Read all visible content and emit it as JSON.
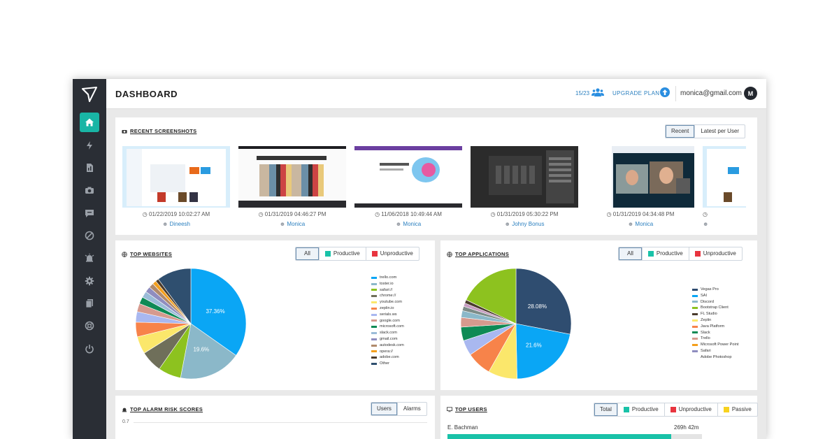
{
  "header": {
    "title": "DASHBOARD",
    "seats": "15/23",
    "upgrade_label": "UPGRADE PLAN",
    "email": "monica@gmail.com",
    "avatar_initial": "M"
  },
  "sidebar": {
    "items": [
      {
        "icon": "home-icon",
        "active": true
      },
      {
        "icon": "lightning-icon"
      },
      {
        "icon": "report-icon"
      },
      {
        "icon": "camera-icon"
      },
      {
        "icon": "chat-icon"
      },
      {
        "icon": "block-icon"
      },
      {
        "icon": "alarm-icon"
      },
      {
        "icon": "gear-icon"
      },
      {
        "icon": "documents-icon"
      },
      {
        "icon": "support-icon"
      },
      {
        "icon": "power-icon"
      }
    ]
  },
  "screenshots": {
    "title": "RECENT SCREENSHOTS",
    "tabs": [
      "Recent",
      "Latest per User"
    ],
    "selected_tab": "Recent",
    "items": [
      {
        "datetime": "01/22/2019 10:02:27 AM",
        "user": "Dineesh"
      },
      {
        "datetime": "01/31/2019 04:46:27 PM",
        "user": "Monica"
      },
      {
        "datetime": "11/06/2018 10:49:44 AM",
        "user": "Monica"
      },
      {
        "datetime": "01/31/2019 05:30:22 PM",
        "user": "Johny Bonus"
      },
      {
        "datetime": "01/31/2019 04:34:48 PM",
        "user": "Monica"
      }
    ]
  },
  "websites": {
    "title": "TOP WEBSITES",
    "filters": [
      "All",
      "Productive",
      "Unproductive"
    ],
    "selected_filter": "All",
    "filter_colors": [
      "",
      "#19c2a8",
      "#e8343f"
    ],
    "chart_data": {
      "type": "pie",
      "slices": [
        {
          "label": "trello.com",
          "value": 37.36,
          "color": "#0aa6f5",
          "shown": "37.36%"
        },
        {
          "label": "toster.io",
          "value": 19.6,
          "color": "#8bb8c9",
          "shown": "19.6%"
        },
        {
          "label": "safari://",
          "value": 7.2,
          "color": "#8dc21f",
          "shown": ""
        },
        {
          "label": "chrome://",
          "value": 6.8,
          "color": "#6f6f5a",
          "shown": ""
        },
        {
          "label": "youtube.com",
          "value": 5.5,
          "color": "#fbe76b",
          "shown": ""
        },
        {
          "label": "zeplin.io",
          "value": 4.6,
          "color": "#f7834a",
          "shown": ""
        },
        {
          "label": "serials.ws",
          "value": 3.3,
          "color": "#a9b8f0",
          "shown": ""
        },
        {
          "label": "google.com",
          "value": 2.6,
          "color": "#d69a8e",
          "shown": ""
        },
        {
          "label": "microsoft.com",
          "value": 2.2,
          "color": "#0e8a55",
          "shown": ""
        },
        {
          "label": "slack.com",
          "value": 2.0,
          "color": "#9bbcd8",
          "shown": ""
        },
        {
          "label": "gmail.com",
          "value": 1.8,
          "color": "#8f8dbf",
          "shown": ""
        },
        {
          "label": "autodesk.com",
          "value": 1.5,
          "color": "#b08a6c",
          "shown": ""
        },
        {
          "label": "opera://",
          "value": 1.2,
          "color": "#f49f1c",
          "shown": ""
        },
        {
          "label": "adobe.com",
          "value": 1.0,
          "color": "#4a3b2c",
          "shown": ""
        },
        {
          "label": "Other",
          "value": 10.8,
          "color": "#2f4f6f",
          "shown": ""
        }
      ]
    }
  },
  "applications": {
    "title": "TOP APPLICATIONS",
    "filters": [
      "All",
      "Productive",
      "Unproductive"
    ],
    "selected_filter": "All",
    "filter_colors": [
      "",
      "#19c2a8",
      "#e8343f"
    ],
    "chart_data": {
      "type": "pie",
      "slices": [
        {
          "label": "Vegas Pro",
          "value": 28.08,
          "color": "#2f4d70",
          "shown": "28.08%"
        },
        {
          "label": "SAI",
          "value": 21.6,
          "color": "#0aa6f5",
          "shown": "21.6%"
        },
        {
          "label": "Discord",
          "value": 8.5,
          "color": "#fbe76b",
          "shown": ""
        },
        {
          "label": "Bootstrap Client",
          "value": 7.3,
          "color": "#f7834a",
          "shown": ""
        },
        {
          "label": "FL Studio",
          "value": 4.5,
          "color": "#a9b8f0",
          "shown": ""
        },
        {
          "label": "Zeplin",
          "value": 4.0,
          "color": "#0e8a55",
          "shown": ""
        },
        {
          "label": "Java Platform",
          "value": 2.8,
          "color": "#d69a8e",
          "shown": ""
        },
        {
          "label": "Slack",
          "value": 2.0,
          "color": "#8bb8c9",
          "shown": ""
        },
        {
          "label": "Trello",
          "value": 1.3,
          "color": "#7c8c88",
          "shown": ""
        },
        {
          "label": "Microsoft Power Point",
          "value": 1.0,
          "color": "#c59cc1",
          "shown": ""
        },
        {
          "label": "Safari",
          "value": 1.0,
          "color": "#4a3b2c",
          "shown": ""
        },
        {
          "label": "Adobe Photoshop",
          "value": 17.9,
          "color": "#8dc21f",
          "shown": ""
        }
      ],
      "legend_colors": [
        "#2f4d70",
        "#0aa6f5",
        "#8bb8c9",
        "#8dc21f",
        "#4a3b2c",
        "#fbe76b",
        "#f7834a",
        "#0e8a55",
        "#d69a8e",
        "#f49f1c",
        "#8f8dbf"
      ]
    }
  },
  "alarms": {
    "title": "TOP ALARM RISK SCORES",
    "tabs": [
      "Users",
      "Alarms"
    ],
    "selected_tab": "Users",
    "y_tick": "0.7"
  },
  "top_users": {
    "title": "TOP USERS",
    "filters": [
      "Total",
      "Productive",
      "Unproductive",
      "Passive"
    ],
    "selected_filter": "Total",
    "filter_colors": [
      "",
      "#19c2a8",
      "#e8343f",
      "#f7d21f"
    ],
    "users": [
      {
        "name": "E. Bachman",
        "time": "269h 42m",
        "fraction": 0.88
      }
    ]
  }
}
